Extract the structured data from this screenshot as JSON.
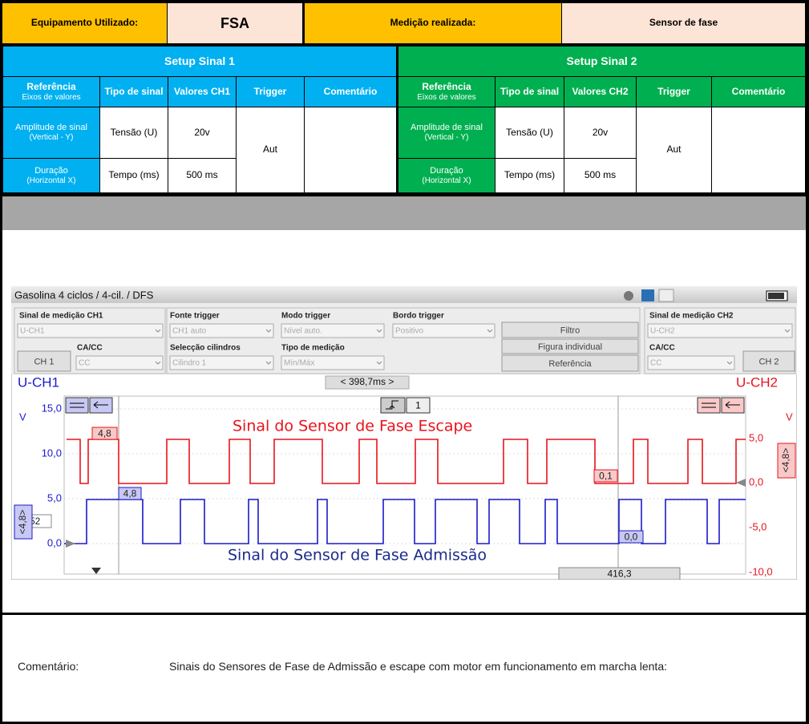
{
  "header": {
    "equipment_label": "Equipamento Utilizado:",
    "equipment": "FSA",
    "measurement_label": "Medição realizada:",
    "measurement": "Sensor de fase"
  },
  "setups": [
    {
      "title": "Setup Sinal 1",
      "columns": {
        "reference": "Referência",
        "reference_sub": "Eixos de valores",
        "type": "Tipo de sinal",
        "values": "Valores CH1",
        "trigger": "Trigger",
        "comment": "Comentário"
      },
      "rows": [
        {
          "reference": "Amplitude de sinal",
          "reference_sub": "(Vertical - Y)",
          "type": "Tensão (U)",
          "value": "20v"
        },
        {
          "reference": "Duração",
          "reference_sub": "(Horizontal X)",
          "type": "Tempo (ms)",
          "value": "500 ms"
        }
      ],
      "trigger": "Aut"
    },
    {
      "title": "Setup Sinal 2",
      "columns": {
        "reference": "Referência",
        "reference_sub": "Eixos de valores",
        "type": "Tipo de sinal",
        "values": "Valores CH2",
        "trigger": "Trigger",
        "comment": "Comentário"
      },
      "rows": [
        {
          "reference": "Amplitude de sinal",
          "reference_sub": "(Vertical - Y)",
          "type": "Tensão (U)",
          "value": "20v"
        },
        {
          "reference": "Duração",
          "reference_sub": "(Horizontal X)",
          "type": "Tempo (ms)",
          "value": "500 ms"
        }
      ],
      "trigger": "Aut"
    }
  ],
  "scope": {
    "title": "Gasolina 4 ciclos /  4-cil. / DFS",
    "controls": {
      "ch1_signal_label": "Sinal de medição CH1",
      "ch1_signal": "U-CH1",
      "ch1_coupling_label": "CA/CC",
      "ch1_coupling": "CC",
      "ch1_button": "CH 1",
      "trigger_source_label": "Fonte trigger",
      "trigger_source": "CH1 auto",
      "cylinder_label": "Selecção cilindros",
      "cylinder": "Cilindro 1",
      "trigger_mode_label": "Modo trigger",
      "trigger_mode": "Nível auto.",
      "measurement_type_label": "Tipo de medição",
      "measurement_type": "Mín/Máx",
      "trigger_edge_label": "Bordo trigger",
      "trigger_edge": "Positivo",
      "filter_button": "Filtro",
      "single_button": "Figura individual",
      "reference_button": "Referência",
      "ch2_signal_label": "Sinal de medição CH2",
      "ch2_signal": "U-CH2",
      "ch2_coupling_label": "CA/CC",
      "ch2_coupling": "CC",
      "ch2_button": "CH 2"
    },
    "plot": {
      "ch1_label": "U-CH1",
      "ch2_label": "U-CH2",
      "time_span": "< 398,7ms >",
      "left_unit": "V",
      "right_unit": "V",
      "left_ticks": [
        "15,0",
        "10,0",
        "5,0",
        "0,0"
      ],
      "right_ticks": [
        "5,0",
        "0,0",
        "-5,0",
        "-10,0"
      ],
      "trigger_channel": "1",
      "annotation_escape": "Sinal do Sensor de Fase Escape",
      "annotation_admission": "Sinal do Sensor de Fase Admissão",
      "marker_red_left": "4,8",
      "marker_blue_left": "4,8",
      "marker_red_right": "0,1",
      "marker_blue_right": "0,0",
      "offset_left": ",52",
      "scale_left": "<4,8>",
      "scale_right": "<4,8>",
      "cursor_time": "416,3"
    }
  },
  "comment": {
    "label": "Comentário:",
    "text": "Sinais do Sensores de Fase de Admissão e escape com motor em funcionamento em marcha lenta:"
  }
}
